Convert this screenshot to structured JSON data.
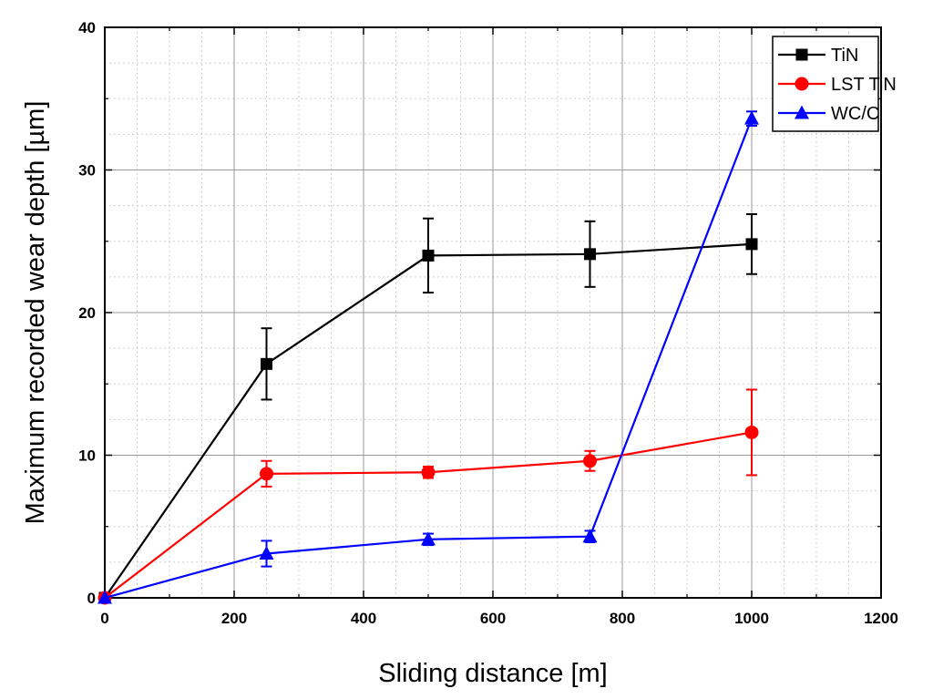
{
  "chart_data": {
    "type": "line",
    "title": "",
    "xlabel": "Sliding distance [m]",
    "ylabel": "Maximum recorded wear depth [µm]",
    "xlim": [
      0,
      1200
    ],
    "ylim": [
      0,
      40
    ],
    "x_ticks": [
      0,
      200,
      400,
      600,
      800,
      1000,
      1200
    ],
    "y_ticks": [
      0,
      10,
      20,
      30,
      40
    ],
    "x_tick_labels": [
      "0",
      "200",
      "400",
      "600",
      "800",
      "1000",
      "1200"
    ],
    "y_tick_labels": [
      "0",
      "10",
      "20",
      "30",
      "40"
    ],
    "grid": true,
    "legend_position": "top-right",
    "series": [
      {
        "name": "TiN",
        "color": "#000000",
        "marker": "square",
        "x": [
          0,
          250,
          500,
          750,
          1000
        ],
        "y": [
          0,
          16.4,
          24.0,
          24.1,
          24.8
        ],
        "err": [
          0,
          2.5,
          2.6,
          2.3,
          2.1
        ]
      },
      {
        "name": "LST TiN",
        "color": "#ff0000",
        "marker": "circle",
        "x": [
          0,
          250,
          500,
          750,
          1000
        ],
        "y": [
          0,
          8.7,
          8.8,
          9.6,
          11.6
        ],
        "err": [
          0,
          0.9,
          0.4,
          0.7,
          3.0
        ]
      },
      {
        "name": "WC/C",
        "color": "#0000ff",
        "marker": "triangle",
        "x": [
          0,
          250,
          500,
          750,
          1000
        ],
        "y": [
          0,
          3.1,
          4.1,
          4.3,
          33.6
        ],
        "err": [
          0,
          0.9,
          0.4,
          0.4,
          0.5
        ]
      }
    ]
  }
}
